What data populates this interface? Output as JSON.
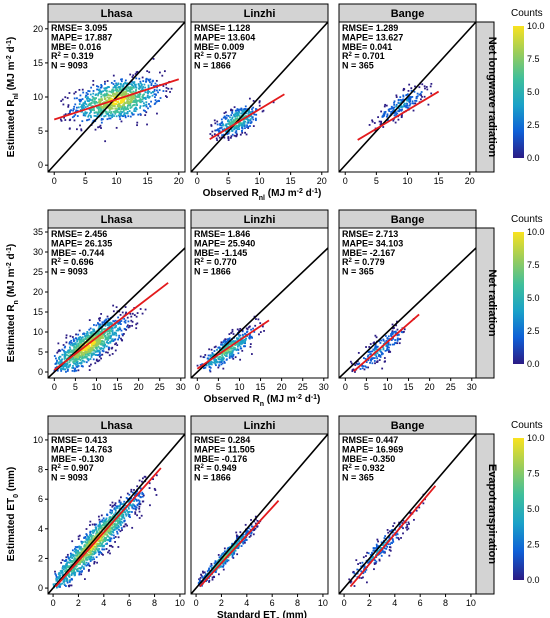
{
  "colors": {
    "strip_fill": "#d3d3d3",
    "identity_line": "#000000",
    "fit_line": "#e31a1c",
    "colorbar": [
      "#2b1b84",
      "#0f5fd6",
      "#1aa1c8",
      "#3fbf9b",
      "#9ccd5a",
      "#f9e21f"
    ]
  },
  "chart_data": [
    {
      "type": "scatter",
      "row_label": "Net longwave radiation",
      "ylabel": "Estimated R",
      "ylabel_sub": "nl",
      "ylabel_units": " (MJ m",
      "ylabel_sup1": "-2",
      "ylabel_d": " d",
      "ylabel_sup2": "-1",
      "ylabel_close": ")",
      "xlabel": "Observed R",
      "xlabel_sub": "nl",
      "xlabel_units": " (MJ m",
      "xlabel_sup1": "-2",
      "xlabel_d": " d",
      "xlabel_sup2": "-1",
      "xlabel_close": ")",
      "xlim": [
        -1,
        21
      ],
      "ylim": [
        -1,
        21
      ],
      "xticks": [
        0,
        5,
        10,
        15,
        20
      ],
      "yticks": [
        0,
        5,
        10,
        15,
        20
      ],
      "colorbar": {
        "title": "Counts",
        "ticks": [
          "10.0",
          "7.5",
          "5.0",
          "2.5",
          "0.0"
        ]
      },
      "panels": [
        {
          "site": "Lhasa",
          "rmse": "3.095",
          "mape": "17.887",
          "mbe": "0.016",
          "r2": "0.319",
          "n": "9093",
          "fit": {
            "x": [
              0,
              20
            ],
            "y": [
              6.7,
              12.6
            ]
          },
          "cloud": {
            "cx": 10,
            "cy": 9.5,
            "sx": 3.6,
            "sy": 1.6,
            "rho": 0.4,
            "count": 950,
            "xmin": 1,
            "xmax": 19,
            "ymin": 3.5,
            "ymax": 16
          }
        },
        {
          "site": "Linzhi",
          "rmse": "1.128",
          "mape": "13.604",
          "mbe": "0.009",
          "r2": "0.577",
          "n": "1866",
          "fit": {
            "x": [
              2,
              14
            ],
            "y": [
              3.8,
              10.4
            ]
          },
          "cloud": {
            "cx": 6.5,
            "cy": 6.5,
            "sx": 1.8,
            "sy": 1.2,
            "rho": 0.6,
            "count": 380,
            "xmin": 2,
            "xmax": 13,
            "ymin": 3,
            "ymax": 11
          }
        },
        {
          "site": "Bange",
          "rmse": "1.289",
          "mape": "13.627",
          "mbe": "0.041",
          "r2": "0.701",
          "n": "365",
          "fit": {
            "x": [
              2,
              15
            ],
            "y": [
              3.7,
              10.8
            ]
          },
          "cloud": {
            "cx": 9,
            "cy": 8.8,
            "sx": 2.1,
            "sy": 1.5,
            "rho": 0.82,
            "count": 200,
            "xmin": 3.5,
            "xmax": 14,
            "ymin": 4,
            "ymax": 12
          }
        }
      ]
    },
    {
      "type": "scatter",
      "row_label": "Net radiation",
      "ylabel": "Estimated R",
      "ylabel_sub": "n",
      "ylabel_units": " (MJ m",
      "ylabel_sup1": "-2",
      "ylabel_d": " d",
      "ylabel_sup2": "-1",
      "ylabel_close": ")",
      "xlabel": "Observed R",
      "xlabel_sub": "n",
      "xlabel_units": " (MJ m",
      "xlabel_sup1": "-2",
      "xlabel_d": " d",
      "xlabel_sup2": "-1",
      "xlabel_close": ")",
      "xlim": [
        -1.5,
        31
      ],
      "ylim": [
        -1.5,
        36
      ],
      "xticks": [
        0,
        5,
        10,
        15,
        20,
        25,
        30
      ],
      "yticks": [
        0,
        5,
        10,
        15,
        20,
        25,
        30,
        35
      ],
      "colorbar": {
        "title": "Counts",
        "ticks": [
          "10.0",
          "7.5",
          "5.0",
          "2.5",
          "0.0"
        ]
      },
      "panels": [
        {
          "site": "Lhasa",
          "rmse": "2.456",
          "mape": "26.135",
          "mbe": "-0.744",
          "r2": "0.696",
          "n": "9093",
          "fit": {
            "x": [
              0,
              27
            ],
            "y": [
              0.5,
              22.3
            ]
          },
          "cloud": {
            "cx": 8,
            "cy": 6.5,
            "sx": 4.5,
            "sy": 3.6,
            "rho": 0.8,
            "count": 1100,
            "xmin": 0,
            "xmax": 22,
            "ymin": 0,
            "ymax": 17
          }
        },
        {
          "site": "Linzhi",
          "rmse": "1.846",
          "mape": "25.940",
          "mbe": "-1.145",
          "r2": "0.770",
          "n": "1866",
          "fit": {
            "x": [
              0,
              17
            ],
            "y": [
              0.8,
              12.9
            ]
          },
          "cloud": {
            "cx": 7,
            "cy": 5.4,
            "sx": 3.6,
            "sy": 2.8,
            "rho": 0.86,
            "count": 400,
            "xmin": 0,
            "xmax": 16,
            "ymin": 0,
            "ymax": 14
          }
        },
        {
          "site": "Bange",
          "rmse": "2.713",
          "mape": "34.103",
          "mbe": "-2.167",
          "r2": "0.779",
          "n": "365",
          "fit": {
            "x": [
              2,
              17.5
            ],
            "y": [
              0.2,
              14.4
            ]
          },
          "cloud": {
            "cx": 8,
            "cy": 5.5,
            "sx": 3.6,
            "sy": 3.2,
            "rho": 0.88,
            "count": 210,
            "xmin": 1,
            "xmax": 17,
            "ymin": 0,
            "ymax": 15
          }
        }
      ]
    },
    {
      "type": "scatter",
      "row_label": "Evapotranspiration",
      "ylabel": "Estimated ET",
      "ylabel_sub": "0",
      "ylabel_units": " (mm)",
      "xlabel": "Standard ET",
      "xlabel_sub": "0",
      "xlabel_units": " (mm)",
      "xlim": [
        -0.4,
        10.4
      ],
      "ylim": [
        -0.4,
        10.4
      ],
      "xticks": [
        0,
        2,
        4,
        6,
        8,
        10
      ],
      "yticks": [
        0,
        2,
        4,
        6,
        8,
        10
      ],
      "colorbar": {
        "title": "Counts",
        "ticks": [
          "10.0",
          "7.5",
          "5.0",
          "2.5",
          "0.0"
        ]
      },
      "panels": [
        {
          "site": "Lhasa",
          "rmse": "0.413",
          "mape": "14.763",
          "mbe": "-0.130",
          "r2": "0.907",
          "n": "9093",
          "fit": {
            "x": [
              0.2,
              8.5
            ],
            "y": [
              0.1,
              8.1
            ]
          },
          "cloud": {
            "cx": 3.2,
            "cy": 3.0,
            "sx": 1.9,
            "sy": 1.8,
            "rho": 0.95,
            "count": 1300,
            "xmin": 0,
            "xmax": 8.6,
            "ymin": 0,
            "ymax": 8.4
          }
        },
        {
          "site": "Linzhi",
          "rmse": "0.284",
          "mape": "11.505",
          "mbe": "-0.176",
          "r2": "0.949",
          "n": "1866",
          "fit": {
            "x": [
              0.3,
              6.5
            ],
            "y": [
              0.1,
              5.9
            ]
          },
          "cloud": {
            "cx": 2.3,
            "cy": 2.1,
            "sx": 1.2,
            "sy": 1.1,
            "rho": 0.97,
            "count": 500,
            "xmin": 0.2,
            "xmax": 6.2,
            "ymin": 0.1,
            "ymax": 6.0
          }
        },
        {
          "site": "Bange",
          "rmse": "0.447",
          "mape": "16.969",
          "mbe": "-0.350",
          "r2": "0.932",
          "n": "365",
          "fit": {
            "x": [
              0.5,
              7.2
            ],
            "y": [
              0.1,
              6.9
            ]
          },
          "cloud": {
            "cx": 2.7,
            "cy": 2.5,
            "sx": 1.3,
            "sy": 1.2,
            "rho": 0.95,
            "count": 220,
            "xmin": 0.3,
            "xmax": 6.5,
            "ymin": 0.1,
            "ymax": 6.5
          }
        }
      ]
    }
  ]
}
